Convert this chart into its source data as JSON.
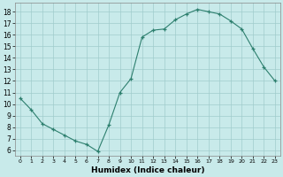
{
  "x": [
    0,
    1,
    2,
    3,
    4,
    5,
    6,
    7,
    8,
    9,
    10,
    11,
    12,
    13,
    14,
    15,
    16,
    17,
    18,
    19,
    20,
    21,
    22,
    23
  ],
  "y": [
    10.5,
    9.5,
    8.3,
    7.8,
    7.3,
    6.8,
    6.5,
    5.9,
    8.2,
    11.0,
    12.2,
    15.8,
    16.4,
    16.5,
    17.3,
    17.8,
    18.2,
    18.0,
    17.8,
    17.2,
    16.5,
    14.8,
    13.2,
    12.0
  ],
  "xlabel": "Humidex (Indice chaleur)",
  "xlim": [
    -0.5,
    23.5
  ],
  "ylim": [
    5.5,
    18.8
  ],
  "yticks": [
    6,
    7,
    8,
    9,
    10,
    11,
    12,
    13,
    14,
    15,
    16,
    17,
    18
  ],
  "xticks": [
    0,
    1,
    2,
    3,
    4,
    5,
    6,
    7,
    8,
    9,
    10,
    11,
    12,
    13,
    14,
    15,
    16,
    17,
    18,
    19,
    20,
    21,
    22,
    23
  ],
  "line_color": "#2d7f6e",
  "marker": "+",
  "bg_color": "#c8eaea",
  "grid_color": "#a0cccc",
  "axis_bg": "#c8eaea"
}
